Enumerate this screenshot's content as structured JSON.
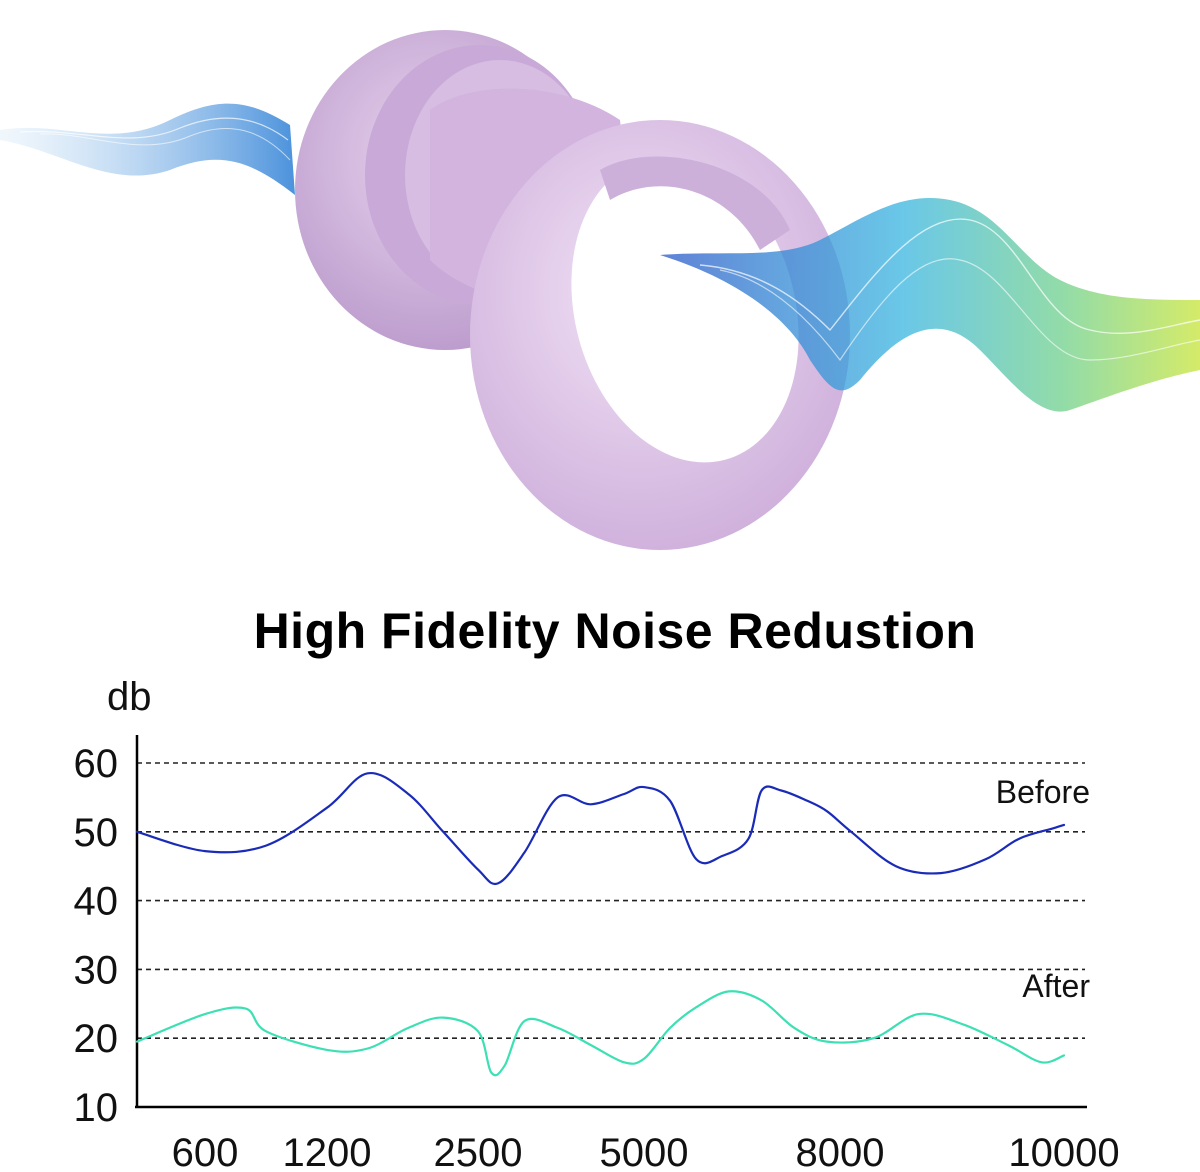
{
  "chart_data": {
    "type": "line",
    "title": "High Fidelity Noise Redustion",
    "ylabel": "db",
    "xlabel": "",
    "categories": [
      "600",
      "1200",
      "2500",
      "5000",
      "8000",
      "10000"
    ],
    "yticks": [
      60,
      50,
      40,
      30,
      20,
      10
    ],
    "ylim": [
      10,
      60
    ],
    "grid": "dashed horizontal at 20, 30, 40, 50, 60",
    "legend": "inline labels at right end of each series",
    "series": [
      {
        "name": "Before",
        "color": "#1a2bb8",
        "x": [
          300,
          600,
          900,
          1200,
          1550,
          1900,
          2200,
          2500,
          2800,
          3200,
          3700,
          4200,
          4700,
          5000,
          5400,
          5800,
          6200,
          6600,
          6800,
          7100,
          7500,
          7800,
          8100,
          8500,
          8900,
          9300,
          9600,
          9900,
          10000
        ],
        "y": [
          50,
          47.2,
          48,
          53.5,
          58.5,
          55.5,
          50,
          44.5,
          42.5,
          47,
          55,
          54,
          55.5,
          56.5,
          54.5,
          46,
          46.5,
          49,
          56,
          56,
          54.5,
          53,
          50,
          45,
          44,
          46,
          49,
          50.5,
          51
        ]
      },
      {
        "name": "After",
        "color": "#3de0b4",
        "x": [
          300,
          600,
          800,
          900,
          1200,
          1550,
          1900,
          2200,
          2500,
          2700,
          2900,
          3200,
          3700,
          4200,
          4700,
          5000,
          5400,
          5800,
          6300,
          6800,
          7300,
          7800,
          8300,
          8700,
          9100,
          9500,
          9800,
          10000
        ],
        "y": [
          19.5,
          23.5,
          24.3,
          21,
          18.3,
          18.5,
          21.5,
          23,
          21,
          15,
          16,
          22.5,
          21.5,
          19,
          16.5,
          17,
          21.5,
          24.5,
          26.8,
          25.5,
          21.5,
          19.5,
          20,
          23.5,
          22,
          19,
          16.5,
          17.5
        ]
      }
    ]
  }
}
